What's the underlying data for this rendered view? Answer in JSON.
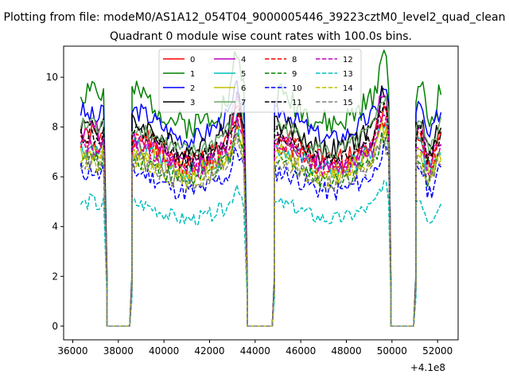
{
  "window_title": "Plotting from file: modeM0/AS1A12_054T04_9000005446_39223cztM0_level2_quad_clean",
  "chart_data": {
    "type": "line",
    "title": "Quadrant 0 module wise count rates with 100.0s bins.",
    "xlabel": "",
    "ylabel": "",
    "xlim": [
      35600,
      52900
    ],
    "ylim": [
      -0.55,
      11.25
    ],
    "x_offset_label": "+4.1e8",
    "x_ticks": [
      36000,
      38000,
      40000,
      42000,
      44000,
      46000,
      48000,
      50000,
      52000
    ],
    "x_tick_labels": [
      "36000",
      "38000",
      "40000",
      "42000",
      "44000",
      "46000",
      "48000",
      "50000",
      "52000"
    ],
    "y_ticks": [
      0,
      2,
      4,
      6,
      8,
      10
    ],
    "y_tick_labels": [
      "0",
      "2",
      "4",
      "6",
      "8",
      "10"
    ],
    "grid": false,
    "legend": {
      "location": "upper center",
      "ncol": 4
    },
    "gaps": [
      [
        37400,
        38600
      ],
      [
        43550,
        44850
      ],
      [
        49850,
        51050
      ]
    ],
    "segments": [
      [
        36350,
        37400
      ],
      [
        38600,
        43550
      ],
      [
        44850,
        49850
      ],
      [
        51050,
        52150
      ]
    ],
    "series": [
      {
        "name": "0",
        "color": "#ff0000",
        "style": "solid",
        "base": 7.1,
        "amp": 0.45,
        "peak": 1.2,
        "seed": 1
      },
      {
        "name": "1",
        "color": "#008000",
        "style": "solid",
        "base": 8.7,
        "amp": 0.55,
        "peak": 1.8,
        "seed": 2
      },
      {
        "name": "2",
        "color": "#0000ff",
        "style": "solid",
        "base": 8.1,
        "amp": 0.4,
        "peak": 0.9,
        "seed": 3
      },
      {
        "name": "3",
        "color": "#000000",
        "style": "solid",
        "base": 7.6,
        "amp": 0.45,
        "peak": 1.2,
        "seed": 4
      },
      {
        "name": "4",
        "color": "#bf00bf",
        "style": "solid",
        "base": 7.0,
        "amp": 0.4,
        "peak": 2.0,
        "seed": 5
      },
      {
        "name": "5",
        "color": "#00bfbf",
        "style": "solid",
        "base": 6.7,
        "amp": 0.4,
        "peak": 1.0,
        "seed": 6
      },
      {
        "name": "6",
        "color": "#bfbf00",
        "style": "solid",
        "base": 6.6,
        "amp": 0.45,
        "peak": 0.9,
        "seed": 7
      },
      {
        "name": "7",
        "color": "#6aa86a",
        "style": "solid",
        "base": 7.5,
        "amp": 0.4,
        "peak": 1.3,
        "seed": 8
      },
      {
        "name": "8",
        "color": "#ff0000",
        "style": "dashed",
        "base": 6.9,
        "amp": 0.45,
        "peak": 1.0,
        "seed": 9
      },
      {
        "name": "9",
        "color": "#008000",
        "style": "dashed",
        "base": 6.3,
        "amp": 0.4,
        "peak": 0.9,
        "seed": 10
      },
      {
        "name": "10",
        "color": "#0000ff",
        "style": "dashed",
        "base": 5.8,
        "amp": 0.4,
        "peak": 0.9,
        "seed": 11
      },
      {
        "name": "11",
        "color": "#000000",
        "style": "dashed",
        "base": 7.2,
        "amp": 0.4,
        "peak": 1.0,
        "seed": 12
      },
      {
        "name": "12",
        "color": "#bf00bf",
        "style": "dashed",
        "base": 6.8,
        "amp": 0.4,
        "peak": 1.0,
        "seed": 13
      },
      {
        "name": "13",
        "color": "#00bfbf",
        "style": "dashed",
        "base": 4.6,
        "amp": 0.3,
        "peak": 0.8,
        "seed": 14
      },
      {
        "name": "14",
        "color": "#bfbf00",
        "style": "dashed",
        "base": 6.3,
        "amp": 0.4,
        "peak": 0.9,
        "seed": 15
      },
      {
        "name": "15",
        "color": "#808080",
        "style": "dashed",
        "base": 6.2,
        "amp": 0.4,
        "peak": 0.9,
        "seed": 16
      }
    ]
  }
}
